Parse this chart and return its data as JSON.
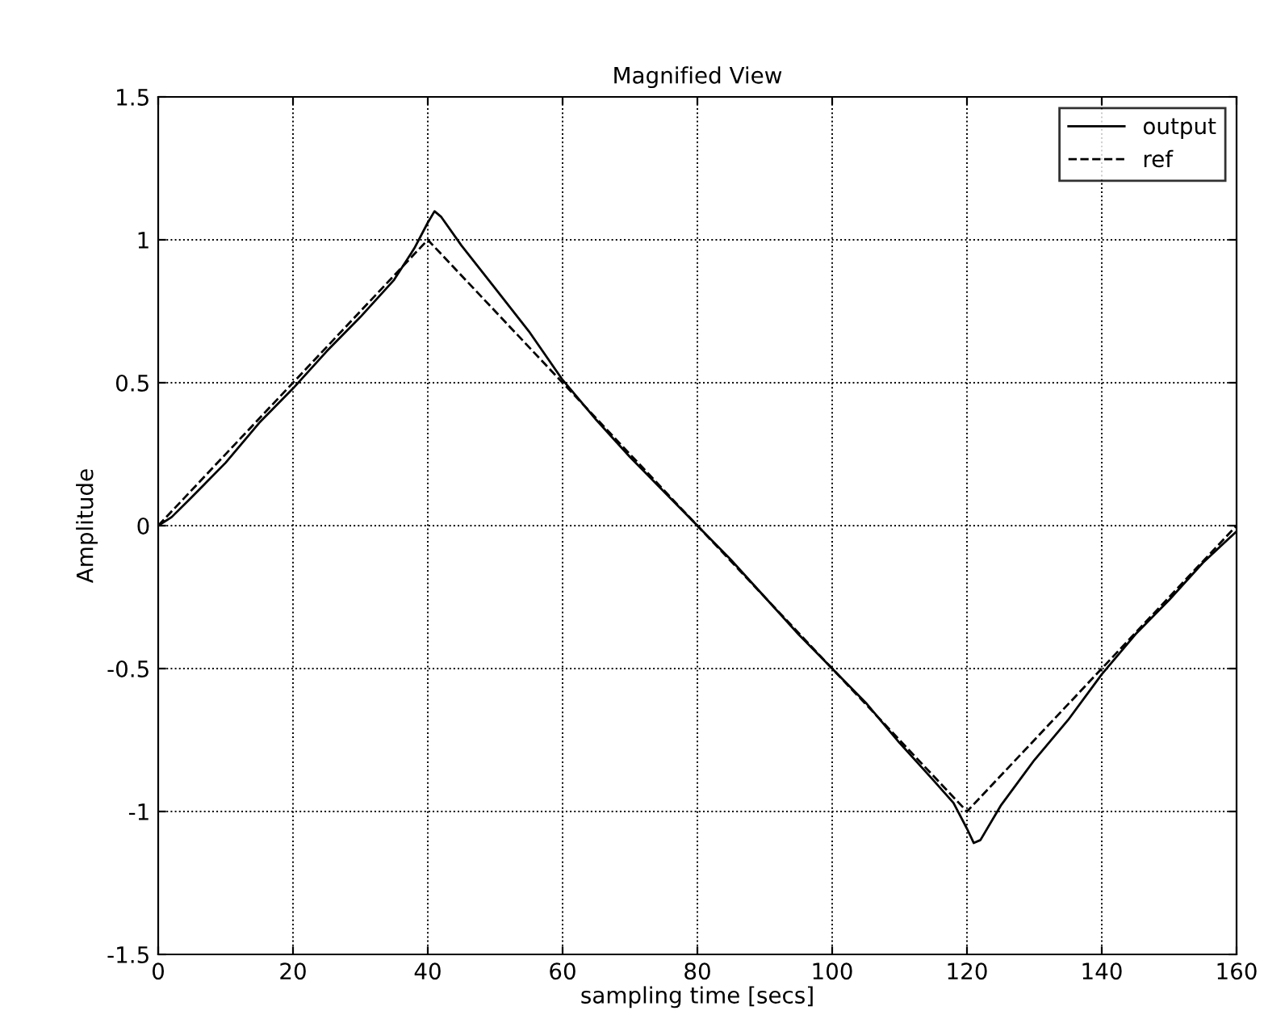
{
  "chart_data": {
    "type": "line",
    "title": "Magnified View",
    "xlabel": "sampling time [secs]",
    "ylabel": "Amplitude",
    "xlim": [
      0,
      160
    ],
    "ylim": [
      -1.5,
      1.5
    ],
    "xticks": [
      0,
      20,
      40,
      60,
      80,
      100,
      120,
      140,
      160
    ],
    "yticks": [
      -1.5,
      -1,
      -0.5,
      0,
      0.5,
      1,
      1.5
    ],
    "grid": true,
    "legend": "top right",
    "series": [
      {
        "name": "output",
        "color": "#000000",
        "line_style": "solid",
        "x": [
          0,
          2,
          5,
          10,
          15,
          20,
          25,
          30,
          35,
          38,
          40,
          41,
          42,
          45,
          50,
          55,
          60,
          65,
          70,
          75,
          80,
          85,
          90,
          95,
          100,
          105,
          110,
          115,
          118,
          120,
          121,
          122,
          125,
          130,
          135,
          140,
          145,
          150,
          155,
          160
        ],
        "values": [
          0,
          0.03,
          0.1,
          0.22,
          0.36,
          0.48,
          0.61,
          0.73,
          0.86,
          0.97,
          1.06,
          1.1,
          1.08,
          0.98,
          0.83,
          0.68,
          0.51,
          0.37,
          0.24,
          0.12,
          0.0,
          -0.12,
          -0.25,
          -0.38,
          -0.5,
          -0.62,
          -0.76,
          -0.89,
          -0.97,
          -1.06,
          -1.11,
          -1.1,
          -0.98,
          -0.82,
          -0.68,
          -0.52,
          -0.38,
          -0.26,
          -0.13,
          -0.02
        ]
      },
      {
        "name": "ref",
        "color": "#000000",
        "line_style": "dashed",
        "x": [
          0,
          40,
          120,
          160
        ],
        "values": [
          0,
          1,
          -1,
          0
        ]
      }
    ]
  }
}
